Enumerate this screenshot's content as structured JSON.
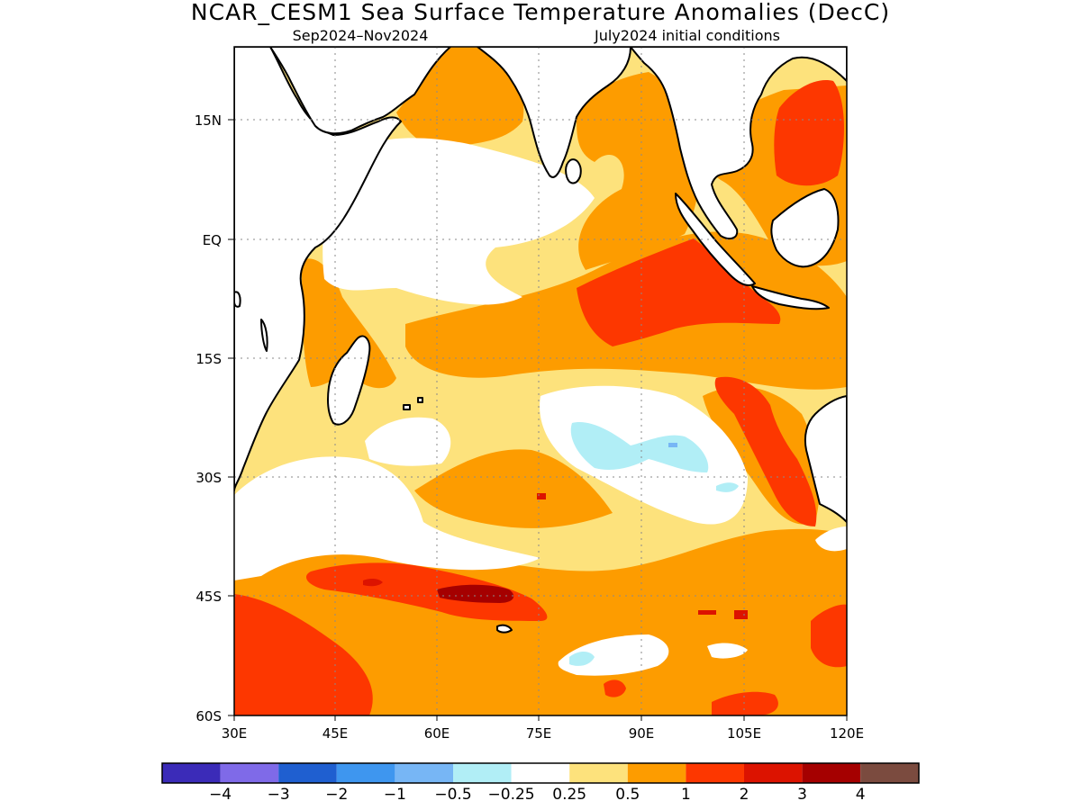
{
  "title": "NCAR_CESM1 Sea Surface Temperature Anomalies (DecC)",
  "subtitle_left": "Sep2024–Nov2024",
  "subtitle_right": "July2024 initial conditions",
  "map": {
    "lon_range": [
      30,
      120
    ],
    "lat_range": [
      -60,
      24
    ],
    "region": "Indian Ocean",
    "lon_ticks": [
      {
        "lon": 30,
        "label": "30E"
      },
      {
        "lon": 45,
        "label": "45E"
      },
      {
        "lon": 60,
        "label": "60E"
      },
      {
        "lon": 75,
        "label": "75E"
      },
      {
        "lon": 90,
        "label": "90E"
      },
      {
        "lon": 105,
        "label": "105E"
      },
      {
        "lon": 120,
        "label": "120E"
      }
    ],
    "lat_ticks": [
      {
        "lat": 15,
        "label": "15N"
      },
      {
        "lat": 0,
        "label": "EQ"
      },
      {
        "lat": -15,
        "label": "15S"
      },
      {
        "lat": -30,
        "label": "30S"
      },
      {
        "lat": -45,
        "label": "45S"
      },
      {
        "lat": -60,
        "label": "60S"
      }
    ],
    "grid": true
  },
  "colorbar": {
    "colors": [
      "#3b2bb8",
      "#7f6ae8",
      "#1f5fd0",
      "#3e96ef",
      "#77b6f5",
      "#b1eef6",
      "#ffffff",
      "#fde27c",
      "#fd9c00",
      "#fd3700",
      "#dc1300",
      "#a50000",
      "#7b4b3f"
    ],
    "labels": [
      "−4",
      "−3",
      "−2",
      "−1",
      "−0.5",
      "−0.25",
      "0.25",
      "0.5",
      "1",
      "2",
      "3",
      "4"
    ]
  },
  "palette": {
    "white": "#ffffff",
    "pale_yellow": "#fde27c",
    "orange": "#fd9c00",
    "red_orange": "#fd3700",
    "red": "#dc1300",
    "dark_red": "#a50000",
    "light_cyan": "#b1eef6",
    "light_blue": "#77b6f5"
  }
}
